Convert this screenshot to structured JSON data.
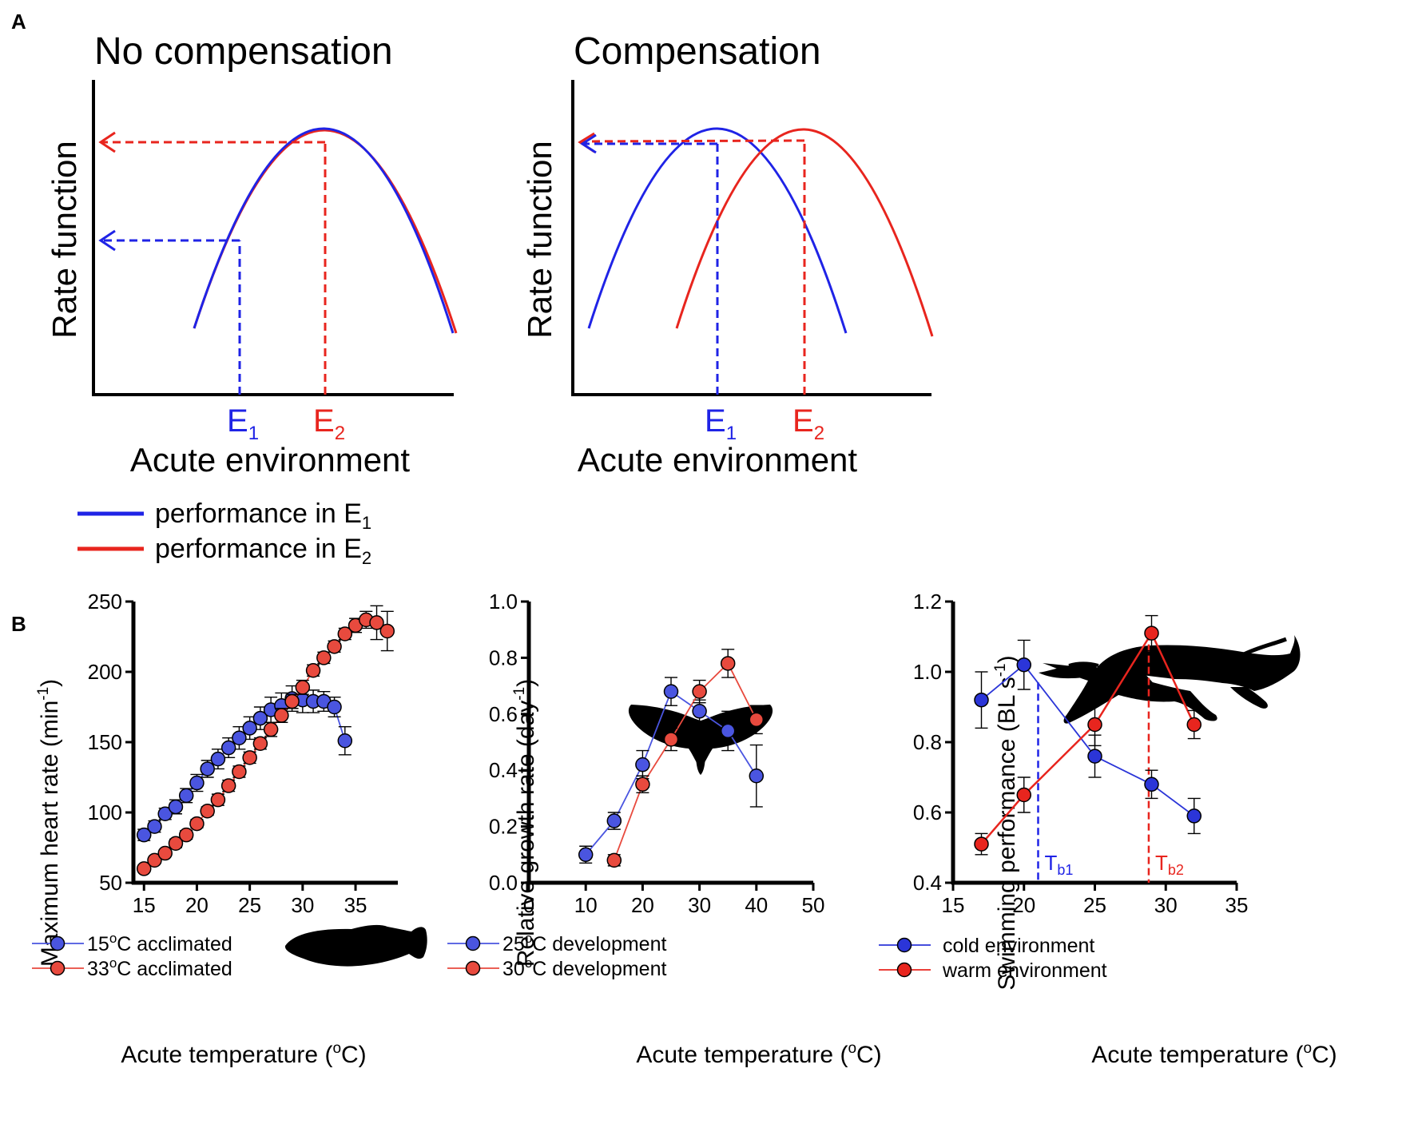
{
  "panel_a": {
    "label": "A",
    "legend": [
      {
        "text": "performance in E",
        "sub": "1",
        "color": "#1f23e6"
      },
      {
        "text": "performance in E",
        "sub": "2",
        "color": "#e8251e"
      }
    ],
    "chart_data": [
      {
        "type": "line",
        "title": "No compensation",
        "xlabel": "Acute environment",
        "ylabel": "Rate function",
        "x_marks": [
          {
            "main": "E",
            "sub": "1",
            "color": "#1f23e6"
          },
          {
            "main": "E",
            "sub": "2",
            "color": "#e8251e"
          }
        ]
      },
      {
        "type": "line",
        "title": "Compensation",
        "xlabel": "Acute environment",
        "ylabel": "Rate function",
        "x_marks": [
          {
            "main": "E",
            "sub": "1",
            "color": "#1f23e6"
          },
          {
            "main": "E",
            "sub": "2",
            "color": "#e8251e"
          }
        ]
      }
    ]
  },
  "panel_b": {
    "label": "B",
    "chart_data": [
      {
        "type": "line",
        "ylabel": "Maximum heart rate (min",
        "ylabel_sup": "-1",
        "ylabel_end": ")",
        "xlabel_pre": "Acute temperature (",
        "xlabel_sup": "o",
        "xlabel_post": "C)",
        "xlim": [
          14,
          39
        ],
        "ylim": [
          50,
          250
        ],
        "xticks": [
          15,
          20,
          25,
          30,
          35
        ],
        "yticks": [
          50,
          100,
          150,
          200,
          250
        ],
        "series": [
          {
            "name": "15°C acclimated",
            "legend_num": "15",
            "legend_rest": "C acclimated",
            "color": "#4a55e0",
            "x": [
              15,
              16,
              17,
              18,
              19,
              20,
              21,
              22,
              23,
              24,
              25,
              26,
              27,
              28,
              29,
              30,
              31,
              32,
              33,
              34
            ],
            "y": [
              84,
              90,
              99,
              104,
              112,
              121,
              131,
              138,
              146,
              153,
              160,
              167,
              173,
              176,
              181,
              180,
              179,
              179,
              175,
              151
            ],
            "err": [
              4,
              4,
              4,
              5,
              5,
              6,
              6,
              7,
              7,
              8,
              8,
              8,
              9,
              9,
              9,
              9,
              8,
              7,
              7,
              10
            ]
          },
          {
            "name": "33°C acclimated",
            "legend_num": "33",
            "legend_rest": "C acclimated",
            "color": "#e84a3e",
            "x": [
              15,
              16,
              17,
              18,
              19,
              20,
              21,
              22,
              23,
              24,
              25,
              26,
              27,
              28,
              29,
              30,
              31,
              32,
              33,
              34,
              35,
              36,
              37,
              38
            ],
            "y": [
              60,
              66,
              71,
              78,
              84,
              92,
              101,
              109,
              119,
              129,
              139,
              149,
              159,
              169,
              179,
              189,
              201,
              210,
              218,
              227,
              233,
              237,
              235,
              229
            ],
            "err": [
              2,
              2,
              2,
              3,
              3,
              3,
              3,
              4,
              4,
              4,
              4,
              4,
              5,
              5,
              5,
              5,
              4,
              4,
              4,
              4,
              5,
              6,
              12,
              14
            ]
          }
        ]
      },
      {
        "type": "line",
        "ylabel": "Relative growth rate (day",
        "ylabel_sup": "-1",
        "ylabel_end": ")",
        "xlabel_pre": "Acute temperature (",
        "xlabel_sup": "o",
        "xlabel_post": "C)",
        "xlim": [
          0,
          50
        ],
        "ylim": [
          0.0,
          1.0
        ],
        "xticks": [
          0,
          10,
          20,
          30,
          40,
          50
        ],
        "yticks": [
          0.0,
          0.2,
          0.4,
          0.6,
          0.8,
          1.0
        ],
        "series": [
          {
            "name": "25°C development",
            "legend_num": "25",
            "legend_rest": "C development",
            "color": "#4a55e0",
            "x": [
              10,
              15,
              20,
              25,
              30,
              35,
              40
            ],
            "y": [
              0.1,
              0.22,
              0.42,
              0.68,
              0.61,
              0.54,
              0.38
            ],
            "err": [
              0.03,
              0.03,
              0.05,
              0.05,
              0.04,
              0.07,
              0.11
            ]
          },
          {
            "name": "30°C development",
            "legend_num": "30",
            "legend_rest": "C development",
            "color": "#e84a3e",
            "x": [
              15,
              20,
              25,
              30,
              35,
              40
            ],
            "y": [
              0.08,
              0.35,
              0.51,
              0.68,
              0.78,
              0.58
            ],
            "err": [
              0.02,
              0.03,
              0.04,
              0.04,
              0.05,
              0.05
            ]
          }
        ]
      },
      {
        "type": "line",
        "ylabel": "Swimming performance (BL s",
        "ylabel_sup": "-1",
        "ylabel_end": ")",
        "xlabel_pre": "Acute temperature (",
        "xlabel_sup": "o",
        "xlabel_post": "C)",
        "xlim": [
          15,
          35
        ],
        "ylim": [
          0.4,
          1.2
        ],
        "xticks": [
          15,
          20,
          25,
          30,
          35
        ],
        "yticks": [
          0.4,
          0.6,
          0.8,
          1.0,
          1.2
        ],
        "reference_lines": [
          {
            "x": 21,
            "label": "T",
            "sub": "b1",
            "color": "#1f23e6"
          },
          {
            "x": 28.8,
            "label": "T",
            "sub": "b2",
            "color": "#e8251e"
          }
        ],
        "series": [
          {
            "name": "cold environment",
            "legend_num": "",
            "legend_rest": "cold environment",
            "color": "#2b35d8",
            "x": [
              17,
              20,
              25,
              29,
              32
            ],
            "y": [
              0.92,
              1.02,
              0.76,
              0.68,
              0.59
            ],
            "err": [
              0.08,
              0.07,
              0.06,
              0.04,
              0.05
            ]
          },
          {
            "name": "warm environment",
            "legend_num": "",
            "legend_rest": "warm environment",
            "color": "#e8251e",
            "x": [
              17,
              20,
              25,
              29,
              32
            ],
            "y": [
              0.51,
              0.65,
              0.85,
              1.11,
              0.85
            ],
            "err": [
              0.03,
              0.05,
              0.06,
              0.05,
              0.04
            ]
          }
        ]
      }
    ]
  }
}
